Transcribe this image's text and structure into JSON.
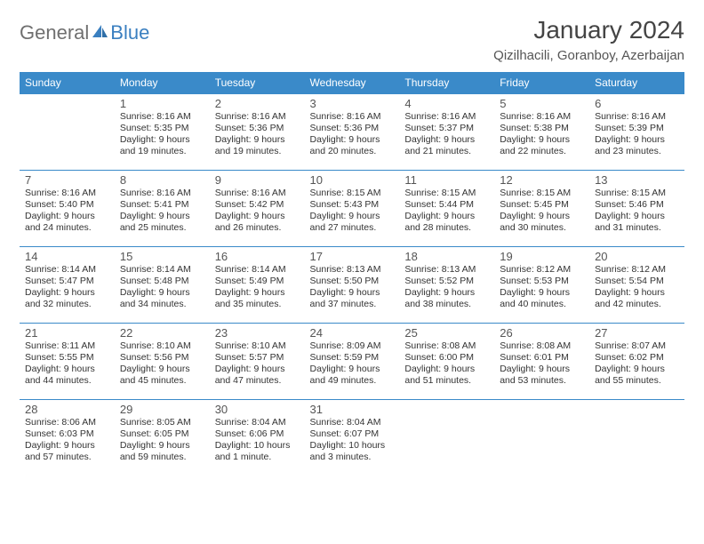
{
  "brand": {
    "word1": "General",
    "word2": "Blue"
  },
  "title": "January 2024",
  "location": "Qizilhacili, Goranboy, Azerbaijan",
  "colors": {
    "header_bg": "#3a8ac9",
    "header_text": "#ffffff",
    "rule": "#3a8ac9",
    "body_text": "#333333",
    "daynum": "#555555",
    "month_title": "#444444",
    "brand_gray": "#6f6f6f",
    "brand_blue": "#3a7fc0",
    "background": "#ffffff"
  },
  "typography": {
    "month_title_fontsize": 28,
    "location_fontsize": 15,
    "weekday_fontsize": 12,
    "daynum_fontsize": 13,
    "cell_text_fontsize": 10.5,
    "font_family": "Arial"
  },
  "weekdays": [
    "Sunday",
    "Monday",
    "Tuesday",
    "Wednesday",
    "Thursday",
    "Friday",
    "Saturday"
  ],
  "grid": [
    [
      null,
      {
        "n": "1",
        "sr": "Sunrise: 8:16 AM",
        "ss": "Sunset: 5:35 PM",
        "d1": "Daylight: 9 hours",
        "d2": "and 19 minutes."
      },
      {
        "n": "2",
        "sr": "Sunrise: 8:16 AM",
        "ss": "Sunset: 5:36 PM",
        "d1": "Daylight: 9 hours",
        "d2": "and 19 minutes."
      },
      {
        "n": "3",
        "sr": "Sunrise: 8:16 AM",
        "ss": "Sunset: 5:36 PM",
        "d1": "Daylight: 9 hours",
        "d2": "and 20 minutes."
      },
      {
        "n": "4",
        "sr": "Sunrise: 8:16 AM",
        "ss": "Sunset: 5:37 PM",
        "d1": "Daylight: 9 hours",
        "d2": "and 21 minutes."
      },
      {
        "n": "5",
        "sr": "Sunrise: 8:16 AM",
        "ss": "Sunset: 5:38 PM",
        "d1": "Daylight: 9 hours",
        "d2": "and 22 minutes."
      },
      {
        "n": "6",
        "sr": "Sunrise: 8:16 AM",
        "ss": "Sunset: 5:39 PM",
        "d1": "Daylight: 9 hours",
        "d2": "and 23 minutes."
      }
    ],
    [
      {
        "n": "7",
        "sr": "Sunrise: 8:16 AM",
        "ss": "Sunset: 5:40 PM",
        "d1": "Daylight: 9 hours",
        "d2": "and 24 minutes."
      },
      {
        "n": "8",
        "sr": "Sunrise: 8:16 AM",
        "ss": "Sunset: 5:41 PM",
        "d1": "Daylight: 9 hours",
        "d2": "and 25 minutes."
      },
      {
        "n": "9",
        "sr": "Sunrise: 8:16 AM",
        "ss": "Sunset: 5:42 PM",
        "d1": "Daylight: 9 hours",
        "d2": "and 26 minutes."
      },
      {
        "n": "10",
        "sr": "Sunrise: 8:15 AM",
        "ss": "Sunset: 5:43 PM",
        "d1": "Daylight: 9 hours",
        "d2": "and 27 minutes."
      },
      {
        "n": "11",
        "sr": "Sunrise: 8:15 AM",
        "ss": "Sunset: 5:44 PM",
        "d1": "Daylight: 9 hours",
        "d2": "and 28 minutes."
      },
      {
        "n": "12",
        "sr": "Sunrise: 8:15 AM",
        "ss": "Sunset: 5:45 PM",
        "d1": "Daylight: 9 hours",
        "d2": "and 30 minutes."
      },
      {
        "n": "13",
        "sr": "Sunrise: 8:15 AM",
        "ss": "Sunset: 5:46 PM",
        "d1": "Daylight: 9 hours",
        "d2": "and 31 minutes."
      }
    ],
    [
      {
        "n": "14",
        "sr": "Sunrise: 8:14 AM",
        "ss": "Sunset: 5:47 PM",
        "d1": "Daylight: 9 hours",
        "d2": "and 32 minutes."
      },
      {
        "n": "15",
        "sr": "Sunrise: 8:14 AM",
        "ss": "Sunset: 5:48 PM",
        "d1": "Daylight: 9 hours",
        "d2": "and 34 minutes."
      },
      {
        "n": "16",
        "sr": "Sunrise: 8:14 AM",
        "ss": "Sunset: 5:49 PM",
        "d1": "Daylight: 9 hours",
        "d2": "and 35 minutes."
      },
      {
        "n": "17",
        "sr": "Sunrise: 8:13 AM",
        "ss": "Sunset: 5:50 PM",
        "d1": "Daylight: 9 hours",
        "d2": "and 37 minutes."
      },
      {
        "n": "18",
        "sr": "Sunrise: 8:13 AM",
        "ss": "Sunset: 5:52 PM",
        "d1": "Daylight: 9 hours",
        "d2": "and 38 minutes."
      },
      {
        "n": "19",
        "sr": "Sunrise: 8:12 AM",
        "ss": "Sunset: 5:53 PM",
        "d1": "Daylight: 9 hours",
        "d2": "and 40 minutes."
      },
      {
        "n": "20",
        "sr": "Sunrise: 8:12 AM",
        "ss": "Sunset: 5:54 PM",
        "d1": "Daylight: 9 hours",
        "d2": "and 42 minutes."
      }
    ],
    [
      {
        "n": "21",
        "sr": "Sunrise: 8:11 AM",
        "ss": "Sunset: 5:55 PM",
        "d1": "Daylight: 9 hours",
        "d2": "and 44 minutes."
      },
      {
        "n": "22",
        "sr": "Sunrise: 8:10 AM",
        "ss": "Sunset: 5:56 PM",
        "d1": "Daylight: 9 hours",
        "d2": "and 45 minutes."
      },
      {
        "n": "23",
        "sr": "Sunrise: 8:10 AM",
        "ss": "Sunset: 5:57 PM",
        "d1": "Daylight: 9 hours",
        "d2": "and 47 minutes."
      },
      {
        "n": "24",
        "sr": "Sunrise: 8:09 AM",
        "ss": "Sunset: 5:59 PM",
        "d1": "Daylight: 9 hours",
        "d2": "and 49 minutes."
      },
      {
        "n": "25",
        "sr": "Sunrise: 8:08 AM",
        "ss": "Sunset: 6:00 PM",
        "d1": "Daylight: 9 hours",
        "d2": "and 51 minutes."
      },
      {
        "n": "26",
        "sr": "Sunrise: 8:08 AM",
        "ss": "Sunset: 6:01 PM",
        "d1": "Daylight: 9 hours",
        "d2": "and 53 minutes."
      },
      {
        "n": "27",
        "sr": "Sunrise: 8:07 AM",
        "ss": "Sunset: 6:02 PM",
        "d1": "Daylight: 9 hours",
        "d2": "and 55 minutes."
      }
    ],
    [
      {
        "n": "28",
        "sr": "Sunrise: 8:06 AM",
        "ss": "Sunset: 6:03 PM",
        "d1": "Daylight: 9 hours",
        "d2": "and 57 minutes."
      },
      {
        "n": "29",
        "sr": "Sunrise: 8:05 AM",
        "ss": "Sunset: 6:05 PM",
        "d1": "Daylight: 9 hours",
        "d2": "and 59 minutes."
      },
      {
        "n": "30",
        "sr": "Sunrise: 8:04 AM",
        "ss": "Sunset: 6:06 PM",
        "d1": "Daylight: 10 hours",
        "d2": "and 1 minute."
      },
      {
        "n": "31",
        "sr": "Sunrise: 8:04 AM",
        "ss": "Sunset: 6:07 PM",
        "d1": "Daylight: 10 hours",
        "d2": "and 3 minutes."
      },
      null,
      null,
      null
    ]
  ]
}
